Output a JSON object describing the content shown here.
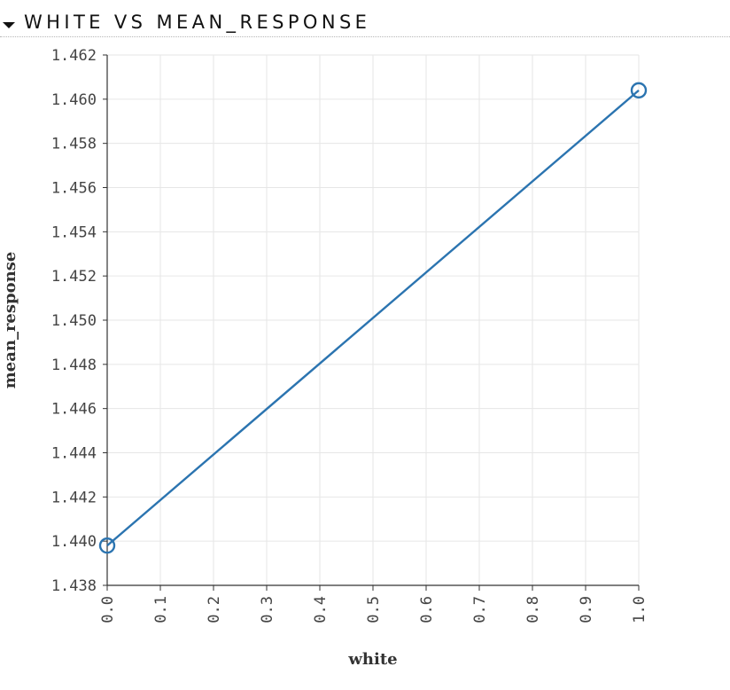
{
  "panel": {
    "title": "WHITE VS MEAN_RESPONSE"
  },
  "chart_data": {
    "type": "line",
    "xlabel": "white",
    "ylabel": "mean_response",
    "x": [
      0.0,
      1.0
    ],
    "series": [
      {
        "values": [
          1.4398,
          1.4604
        ],
        "color": "#2b74b0"
      }
    ],
    "xlim": [
      0.0,
      1.0
    ],
    "ylim": [
      1.438,
      1.462
    ],
    "xticks": [
      "0.0",
      "0.1",
      "0.2",
      "0.3",
      "0.4",
      "0.5",
      "0.6",
      "0.7",
      "0.8",
      "0.9",
      "1.0"
    ],
    "yticks": [
      "1.438",
      "1.440",
      "1.442",
      "1.444",
      "1.446",
      "1.448",
      "1.450",
      "1.452",
      "1.454",
      "1.456",
      "1.458",
      "1.460",
      "1.462"
    ],
    "grid": true,
    "markers": "open-circle"
  }
}
